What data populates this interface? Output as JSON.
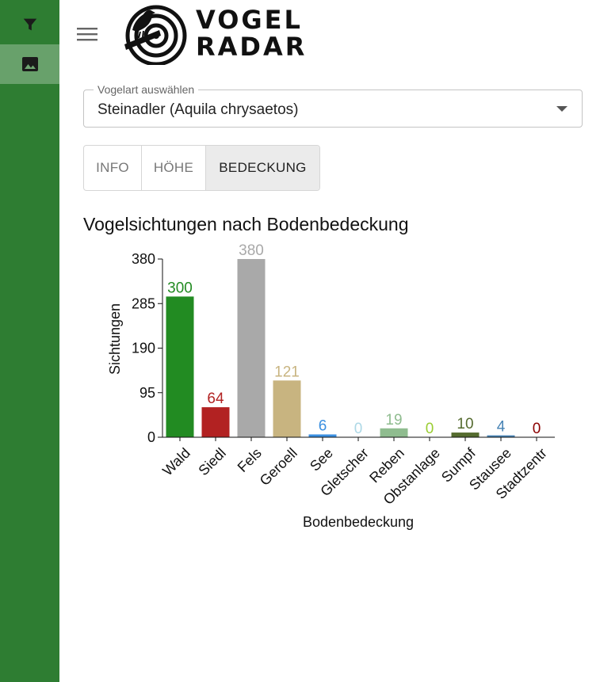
{
  "app": {
    "title_line1": "VOGEL",
    "title_line2": "RADAR"
  },
  "sidebar": {
    "color": "#2e7d32",
    "items": [
      {
        "icon": "filter-icon",
        "active": false
      },
      {
        "icon": "image-icon",
        "active": true
      }
    ]
  },
  "header": {
    "menu_icon": "hamburger-menu-icon",
    "logo_icon": "bird-radar-logo"
  },
  "species_select": {
    "label": "Vogelart auswählen",
    "value": "Steinadler (Aquila chrysaetos)"
  },
  "tabs": [
    {
      "label": "INFO",
      "active": false
    },
    {
      "label": "HÖHE",
      "active": false
    },
    {
      "label": "BEDECKUNG",
      "active": true
    }
  ],
  "chart_data": {
    "type": "bar",
    "title": "Vogelsichtungen nach Bodenbedeckung",
    "xlabel": "Bodenbedeckung",
    "ylabel": "Sichtungen",
    "ylim": [
      0,
      380
    ],
    "yticks": [
      0,
      95,
      190,
      285,
      380
    ],
    "grid": false,
    "categories": [
      "Wald",
      "Siedl",
      "Fels",
      "Geroell",
      "See",
      "Gletscher",
      "Reben",
      "Obstanlage",
      "Sumpf",
      "Stausee",
      "Stadtzentr"
    ],
    "values": [
      300,
      64,
      380,
      121,
      6,
      0,
      19,
      0,
      10,
      4,
      0
    ],
    "colors": [
      "#228b22",
      "#b22222",
      "#a9a9a9",
      "#c8b480",
      "#3a8fe0",
      "#add8e6",
      "#8fbc8f",
      "#9acd32",
      "#556b2f",
      "#4682b4",
      "#8b0000"
    ]
  }
}
